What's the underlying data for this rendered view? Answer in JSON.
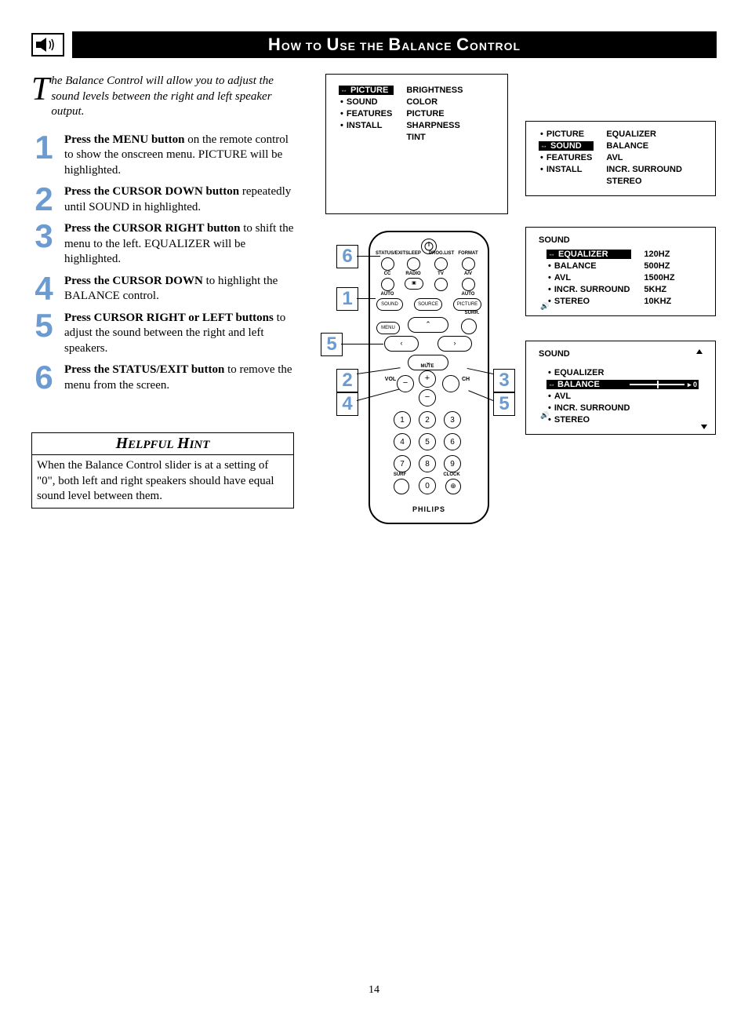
{
  "page_number": "14",
  "title": {
    "parts": [
      "H",
      "OW TO",
      " U",
      "SE THE",
      " B",
      "ALANCE",
      " C",
      "ONTROL"
    ]
  },
  "intro": {
    "dropcap": "T",
    "rest": "he Balance Control will allow you to adjust the sound levels between the right and left speaker output."
  },
  "steps": [
    {
      "n": "1",
      "bold": "Press the MENU button",
      "rest": " on the remote control to show the onscreen menu. PICTURE will be highlighted."
    },
    {
      "n": "2",
      "bold": "Press the CURSOR DOWN button",
      "rest": " repeatedly until SOUND in highlighted."
    },
    {
      "n": "3",
      "bold": "Press the CURSOR RIGHT button",
      "rest": " to shift the menu to the left. EQUALIZER will be highlighted."
    },
    {
      "n": "4",
      "bold": "Press the CURSOR DOWN",
      "rest": " to highlight the BALANCE control."
    },
    {
      "n": "5",
      "bold": "Press CURSOR RIGHT or LEFT buttons",
      "rest": " to adjust the sound between the right and left speakers."
    },
    {
      "n": "6",
      "bold": "Press the STATUS/EXIT button",
      "rest": " to remove the menu from the screen."
    }
  ],
  "hint": {
    "title_parts": [
      "H",
      "ELPFUL",
      " H",
      "INT"
    ],
    "body": "When the Balance Control slider is at a setting of \"0\", both left and right speakers should have equal sound level between them."
  },
  "colors": {
    "step_number": "#6c9bd1",
    "text": "#000000",
    "background": "#ffffff",
    "title_bg": "#000000",
    "title_fg": "#ffffff"
  },
  "menu1": {
    "left": [
      {
        "label": "PICTURE",
        "selected": true
      },
      {
        "label": "SOUND",
        "selected": false
      },
      {
        "label": "FEATURES",
        "selected": false
      },
      {
        "label": "INSTALL",
        "selected": false
      }
    ],
    "right": [
      "BRIGHTNESS",
      "COLOR",
      "PICTURE",
      "SHARPNESS",
      "TINT"
    ]
  },
  "menu2": {
    "left": [
      {
        "label": "PICTURE",
        "selected": false
      },
      {
        "label": "SOUND",
        "selected": true
      },
      {
        "label": "FEATURES",
        "selected": false
      },
      {
        "label": "INSTALL",
        "selected": false
      }
    ],
    "right": [
      "EQUALIZER",
      "BALANCE",
      "AVL",
      "INCR. SURROUND",
      "STEREO"
    ]
  },
  "menu3": {
    "title": "SOUND",
    "left": [
      {
        "label": "EQUALIZER",
        "selected": true
      },
      {
        "label": "BALANCE",
        "selected": false
      },
      {
        "label": "AVL",
        "selected": false
      },
      {
        "label": "INCR. SURROUND",
        "selected": false
      },
      {
        "label": "STEREO",
        "selected": false
      }
    ],
    "right": [
      "120HZ",
      "500HZ",
      "1500HZ",
      "5KHZ",
      "10KHZ"
    ]
  },
  "menu4": {
    "title": "SOUND",
    "left": [
      {
        "label": "EQUALIZER",
        "selected": false
      },
      {
        "label": "BALANCE",
        "selected": true
      },
      {
        "label": "AVL",
        "selected": false
      },
      {
        "label": "INCR. SURROUND",
        "selected": false
      },
      {
        "label": "STEREO",
        "selected": false
      }
    ],
    "slider_value": "0"
  },
  "remote": {
    "brand": "PHILIPS",
    "row_labels_top": [
      "STATUS/EXIT",
      "SLEEP",
      "PROG.LIST",
      "FORMAT"
    ],
    "row_labels_mid": [
      "CC",
      "RADIO",
      "TV",
      "A/V"
    ],
    "row_labels_auto": [
      "AUTO",
      "",
      "",
      "AUTO"
    ],
    "oval_labels": [
      "SOUND",
      "SOURCE",
      "PICTURE"
    ],
    "menu_label": "MENU",
    "surr_label": "SURR.",
    "vol_label": "VOL",
    "ch_label": "CH",
    "mute_label": "MUTE",
    "surf_label": "SURF",
    "clock_label": "CLOCK"
  },
  "callouts": [
    "6",
    "1",
    "5",
    "2",
    "4",
    "3",
    "5"
  ]
}
